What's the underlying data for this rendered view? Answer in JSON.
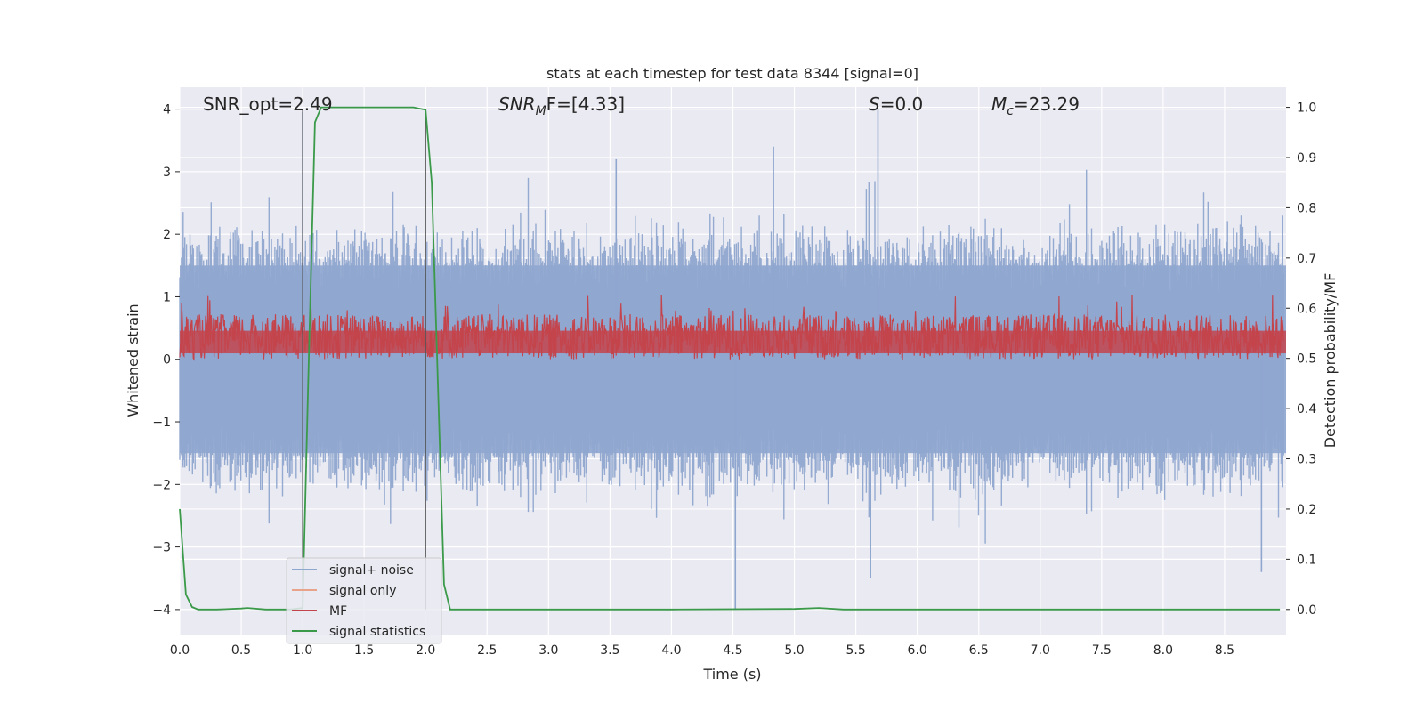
{
  "chart_data": {
    "type": "line",
    "title": "stats at each timestep for test data 8344 [signal=0]",
    "xlabel": "Time (s)",
    "ylabel_left": "Whitened strain",
    "ylabel_right": "Detection probability/MF",
    "xlim": [
      0.0,
      9.0
    ],
    "ylim_left": [
      -4.4,
      4.35
    ],
    "ylim_right": [
      -0.05,
      1.04
    ],
    "x_ticks": [
      "0.0",
      "0.5",
      "1.0",
      "1.5",
      "2.0",
      "2.5",
      "3.0",
      "3.5",
      "4.0",
      "4.5",
      "5.0",
      "5.5",
      "6.0",
      "6.5",
      "7.0",
      "7.5",
      "8.0",
      "8.5"
    ],
    "y_ticks_left": [
      "4",
      "3",
      "2",
      "1",
      "0",
      "−1",
      "−2",
      "−3",
      "−4"
    ],
    "y_ticks_right": [
      "1.0",
      "0.9",
      "0.8",
      "0.7",
      "0.6",
      "0.5",
      "0.4",
      "0.3",
      "0.2",
      "0.1",
      "0.0"
    ],
    "grid": true,
    "legend_position": "lower-left",
    "annotations": {
      "snr_opt": "SNR_opt=2.49",
      "snr_mf_main": "SNR",
      "snr_mf_sub": "M",
      "snr_mf_tail": "F=[4.33]",
      "s_main": "S",
      "s_tail": "=0.0",
      "mc_main": "M",
      "mc_sub": "c",
      "mc_tail": "=23.29"
    },
    "vertical_markers_x": [
      1.0,
      2.0
    ],
    "series": [
      {
        "name": "signal+ noise",
        "color": "#8fa6cf",
        "axis": "left",
        "description": "dense noise band around 0",
        "typical_range": [
          -2.0,
          2.0
        ],
        "extremes": [
          -4.0,
          4.0
        ]
      },
      {
        "name": "signal only",
        "color": "#e8a38a",
        "axis": "left",
        "values": []
      },
      {
        "name": "MF",
        "color": "#c4444c",
        "axis": "right",
        "typical_range": [
          0.5,
          0.6
        ]
      },
      {
        "name": "signal statistics",
        "color": "#3a9a49",
        "axis": "right",
        "x": [
          0.0,
          0.05,
          0.1,
          0.15,
          0.2,
          0.3,
          0.5,
          0.55,
          0.7,
          0.9,
          1.0,
          1.05,
          1.1,
          1.15,
          1.5,
          1.9,
          2.0,
          2.05,
          2.1,
          2.15,
          2.2,
          3.0,
          4.0,
          5.0,
          5.2,
          5.4,
          6.0,
          7.0,
          8.0,
          8.95
        ],
        "values": [
          0.2,
          0.03,
          0.005,
          0.0,
          0.0,
          0.0,
          0.002,
          0.003,
          0.0,
          0.0,
          0.003,
          0.5,
          0.97,
          1.0,
          1.0,
          1.0,
          0.995,
          0.85,
          0.45,
          0.05,
          0.0,
          0.0,
          0.0,
          0.001,
          0.003,
          0.0,
          0.0,
          0.0,
          0.0,
          0.0
        ]
      }
    ]
  }
}
